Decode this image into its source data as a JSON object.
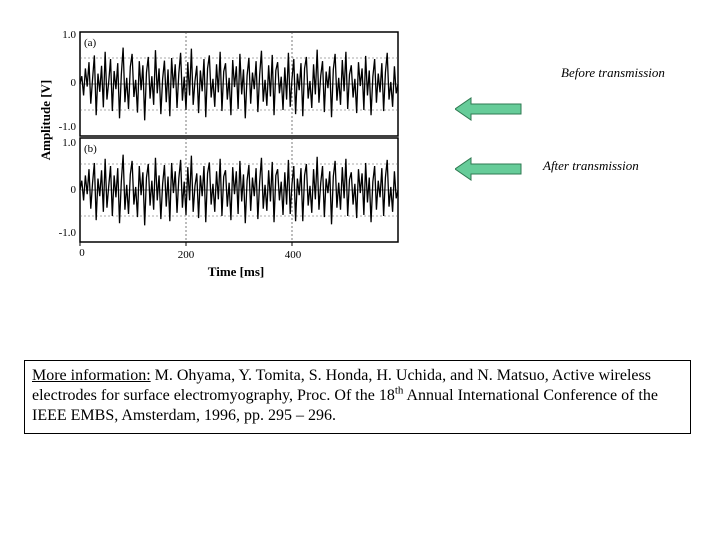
{
  "chart_data": {
    "type": "line",
    "title": "",
    "xlabel": "Time [ms]",
    "ylabel": "Amplitude [V]",
    "x_ticks": [
      "0",
      "200",
      "400"
    ],
    "xlim": [
      0,
      600
    ],
    "panels": [
      {
        "label": "(a)",
        "ylim": [
          -1.0,
          1.0
        ],
        "y_ticks": [
          "1.0",
          "0",
          "-1.0"
        ],
        "samples": [
          0.0,
          0.15,
          -0.22,
          0.3,
          -0.05,
          0.42,
          -0.38,
          0.1,
          0.55,
          -0.6,
          0.2,
          -0.15,
          0.35,
          -0.45,
          0.62,
          -0.3,
          0.05,
          0.48,
          -0.52,
          0.25,
          -0.1,
          0.4,
          -0.66,
          0.18,
          0.7,
          -0.35,
          0.12,
          -0.48,
          0.33,
          0.58,
          -0.25,
          0.08,
          -0.55,
          0.44,
          -0.12,
          0.36,
          -0.7,
          0.22,
          0.52,
          -0.28,
          0.15,
          -0.4,
          0.65,
          -0.18,
          0.3,
          -0.58,
          0.1,
          0.45,
          -0.35,
          0.28,
          -0.62,
          0.5,
          -0.08,
          0.38,
          -0.46,
          0.2,
          0.6,
          -0.32,
          0.14,
          -0.5,
          0.42,
          -0.22,
          0.68,
          -0.4,
          0.06,
          0.35,
          -0.56,
          0.26,
          -0.14,
          0.48,
          -0.64,
          0.3,
          0.55,
          -0.26,
          0.1,
          -0.44,
          0.38,
          -0.16,
          0.62,
          -0.52,
          0.24,
          0.4,
          -0.3,
          0.12,
          -0.6,
          0.46,
          -0.06,
          0.34,
          -0.48,
          0.58,
          -0.2,
          0.28,
          -0.66,
          0.16,
          0.5,
          -0.38,
          0.22,
          -0.1,
          0.44,
          -0.54,
          0.18,
          0.64,
          -0.34,
          0.08,
          -0.42,
          0.36,
          -0.24,
          0.56,
          -0.6,
          0.26,
          0.42,
          -0.18,
          0.14,
          -0.5,
          0.32,
          -0.3,
          0.6,
          -0.44,
          0.1,
          0.48,
          -0.58,
          0.2,
          -0.12,
          0.4,
          -0.62,
          0.3,
          0.52,
          -0.28,
          0.06,
          -0.46,
          0.38,
          -0.2,
          0.66,
          -0.36,
          0.16,
          0.44,
          -0.54,
          0.24,
          -0.08,
          0.34,
          -0.64,
          0.28,
          0.58,
          -0.32,
          0.12,
          -0.4,
          0.46,
          -0.14,
          0.62,
          -0.48,
          0.18,
          0.36,
          -0.26,
          0.1,
          -0.56,
          0.42,
          -0.04,
          0.3,
          -0.5,
          0.54,
          -0.22,
          0.26,
          -0.6,
          0.14,
          0.48,
          -0.36,
          0.2,
          -0.16,
          0.4,
          -0.52,
          0.22,
          0.6,
          -0.3,
          0.04,
          -0.44,
          0.34,
          -0.18,
          0.0
        ]
      },
      {
        "label": "(b)",
        "ylim": [
          -1.0,
          1.0
        ],
        "y_ticks": [
          "1.0",
          "0",
          "-1.0"
        ],
        "samples": [
          0.0,
          0.18,
          -0.2,
          0.28,
          -0.08,
          0.4,
          -0.36,
          0.14,
          0.52,
          -0.58,
          0.22,
          -0.12,
          0.38,
          -0.42,
          0.6,
          -0.34,
          0.08,
          0.46,
          -0.5,
          0.28,
          -0.14,
          0.42,
          -0.64,
          0.16,
          0.68,
          -0.38,
          0.1,
          -0.46,
          0.3,
          0.56,
          -0.28,
          0.06,
          -0.52,
          0.46,
          -0.1,
          0.34,
          -0.68,
          0.24,
          0.5,
          -0.3,
          0.18,
          -0.38,
          0.62,
          -0.2,
          0.28,
          -0.56,
          0.12,
          0.48,
          -0.32,
          0.26,
          -0.6,
          0.52,
          -0.06,
          0.36,
          -0.44,
          0.22,
          0.58,
          -0.34,
          0.16,
          -0.48,
          0.44,
          -0.2,
          0.66,
          -0.42,
          0.08,
          0.32,
          -0.54,
          0.28,
          -0.12,
          0.46,
          -0.62,
          0.32,
          0.53,
          -0.28,
          0.12,
          -0.42,
          0.36,
          -0.18,
          0.6,
          -0.5,
          0.26,
          0.38,
          -0.32,
          0.14,
          -0.58,
          0.44,
          -0.08,
          0.36,
          -0.46,
          0.56,
          -0.22,
          0.3,
          -0.64,
          0.18,
          0.48,
          -0.4,
          0.24,
          -0.12,
          0.42,
          -0.56,
          0.16,
          0.62,
          -0.36,
          0.1,
          -0.4,
          0.38,
          -0.22,
          0.54,
          -0.62,
          0.28,
          0.4,
          -0.2,
          0.16,
          -0.48,
          0.34,
          -0.28,
          0.58,
          -0.46,
          0.12,
          0.46,
          -0.6,
          0.22,
          -0.1,
          0.42,
          -0.6,
          0.28,
          0.5,
          -0.3,
          0.08,
          -0.44,
          0.4,
          -0.18,
          0.64,
          -0.38,
          0.14,
          0.46,
          -0.52,
          0.22,
          -0.06,
          0.36,
          -0.66,
          0.26,
          0.56,
          -0.34,
          0.14,
          -0.38,
          0.44,
          -0.16,
          0.6,
          -0.5,
          0.2,
          0.34,
          -0.28,
          0.12,
          -0.54,
          0.4,
          -0.06,
          0.32,
          -0.48,
          0.52,
          -0.24,
          0.24,
          -0.62,
          0.16,
          0.46,
          -0.38,
          0.18,
          -0.14,
          0.42,
          -0.5,
          0.24,
          0.58,
          -0.32,
          0.06,
          -0.42,
          0.36,
          -0.16,
          0.0
        ]
      }
    ],
    "grid": true,
    "legend": "none"
  },
  "annotations": {
    "before": "Before transmission",
    "after": "After transmission",
    "arrow_color": "#66cc99"
  },
  "reference": {
    "label": "More information:",
    "text_part1": " M. Ohyama, Y. Tomita, S. Honda, H. Uchida, and N. Matsuo, Active wireless electrodes for surface electromyography, Proc. Of the 18",
    "superscript": "th",
    "text_part2": " Annual International Conference of the IEEE EMBS, Amsterdam, 1996, pp. 295 – 296."
  }
}
